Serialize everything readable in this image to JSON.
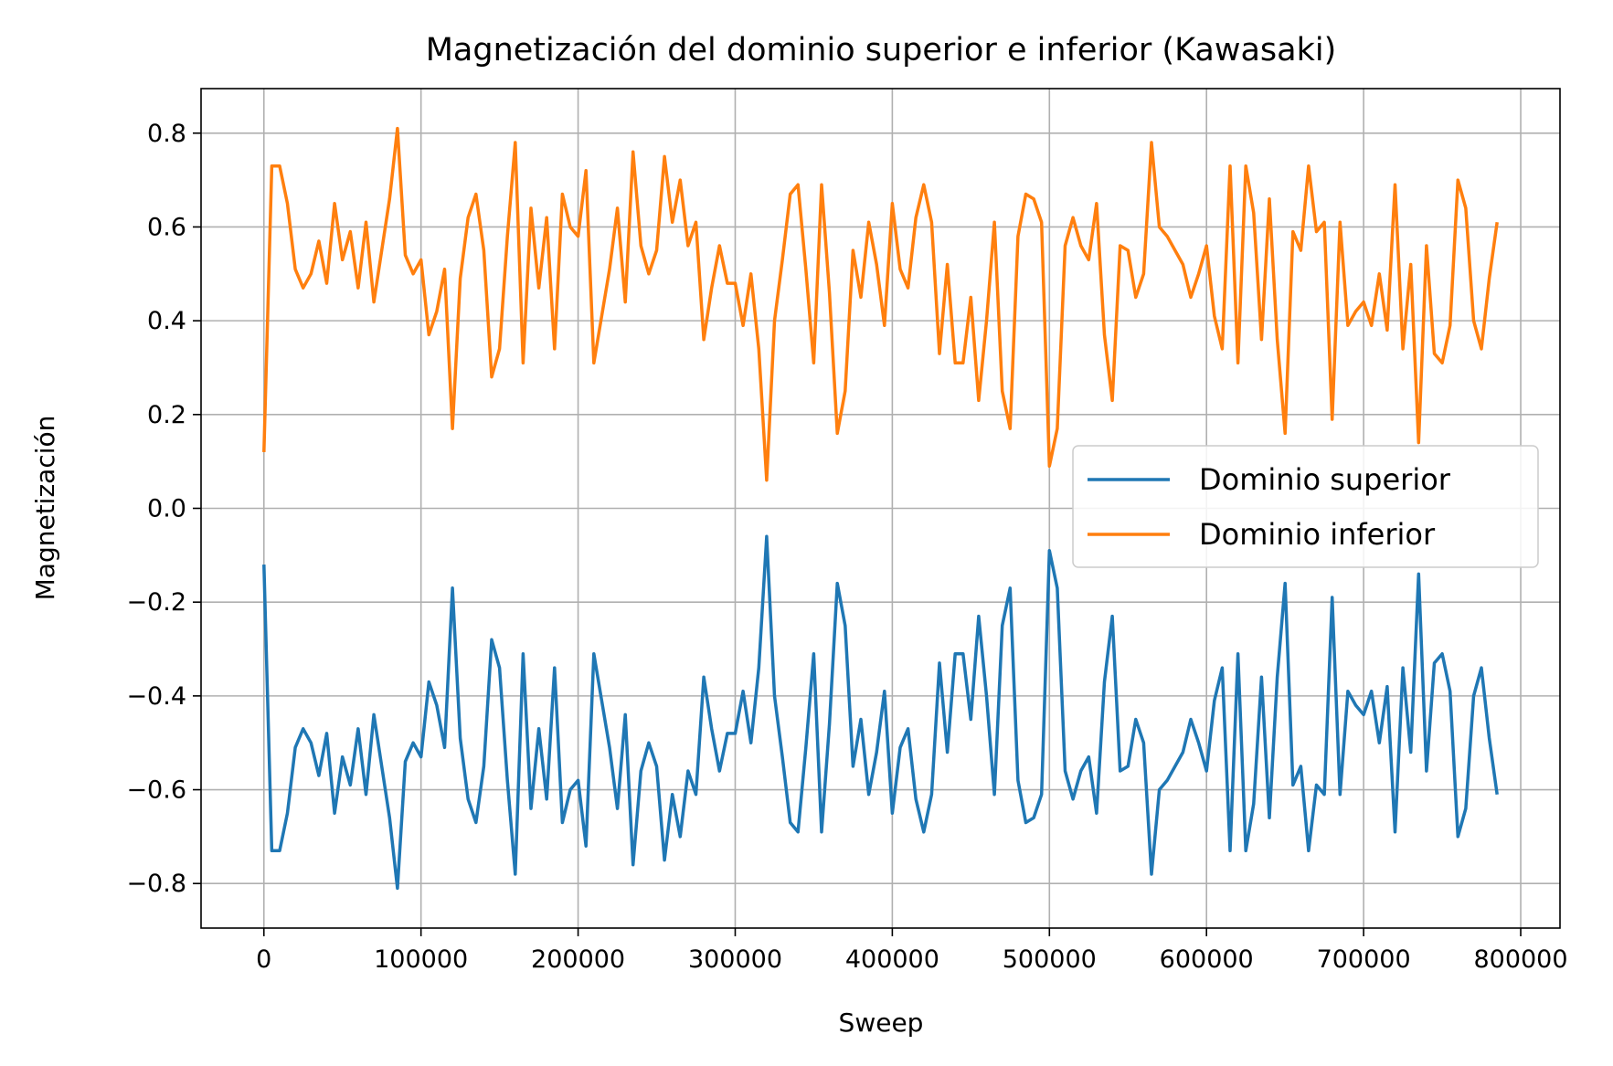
{
  "chart_data": {
    "type": "line",
    "title": "Magnetización del dominio superior e inferior (Kawasaki)",
    "xlabel": "Sweep",
    "ylabel": "Magnetización",
    "xlim": [
      -40000,
      825000
    ],
    "ylim": [
      -0.895,
      0.895
    ],
    "xticks": [
      0,
      100000,
      200000,
      300000,
      400000,
      500000,
      600000,
      700000,
      800000
    ],
    "xtick_labels": [
      "0",
      "100000",
      "200000",
      "300000",
      "400000",
      "500000",
      "600000",
      "700000",
      "800000"
    ],
    "yticks": [
      -0.8,
      -0.6,
      -0.4,
      -0.2,
      0.0,
      0.2,
      0.4,
      0.6,
      0.8
    ],
    "ytick_labels": [
      "−0.8",
      "−0.6",
      "−0.4",
      "−0.2",
      "0.0",
      "0.2",
      "0.4",
      "0.6",
      "0.8"
    ],
    "grid": true,
    "legend_position": "center-right",
    "x": [
      0,
      5000,
      10000,
      15000,
      20000,
      25000,
      30000,
      35000,
      40000,
      45000,
      50000,
      55000,
      60000,
      65000,
      70000,
      75000,
      80000,
      85000,
      90000,
      95000,
      100000,
      105000,
      110000,
      115000,
      120000,
      125000,
      130000,
      135000,
      140000,
      145000,
      150000,
      155000,
      160000,
      165000,
      170000,
      175000,
      180000,
      185000,
      190000,
      195000,
      200000,
      205000,
      210000,
      215000,
      220000,
      225000,
      230000,
      235000,
      240000,
      245000,
      250000,
      255000,
      260000,
      265000,
      270000,
      275000,
      280000,
      285000,
      290000,
      295000,
      300000,
      305000,
      310000,
      315000,
      320000,
      325000,
      330000,
      335000,
      340000,
      345000,
      350000,
      355000,
      360000,
      365000,
      370000,
      375000,
      380000,
      385000,
      390000,
      395000,
      400000,
      405000,
      410000,
      415000,
      420000,
      425000,
      430000,
      435000,
      440000,
      445000,
      450000,
      455000,
      460000,
      465000,
      470000,
      475000,
      480000,
      485000,
      490000,
      495000,
      500000,
      505000,
      510000,
      515000,
      520000,
      525000,
      530000,
      535000,
      540000,
      545000,
      550000,
      555000,
      560000,
      565000,
      570000,
      575000,
      580000,
      585000,
      590000,
      595000,
      600000,
      605000,
      610000,
      615000,
      620000,
      625000,
      630000,
      635000,
      640000,
      645000,
      650000,
      655000,
      660000,
      665000,
      670000,
      675000,
      680000,
      685000,
      690000,
      695000,
      700000,
      705000,
      710000,
      715000,
      720000,
      725000,
      730000,
      735000,
      740000,
      745000,
      750000,
      755000,
      760000,
      765000,
      770000,
      775000,
      780000,
      785000
    ],
    "series": [
      {
        "name": "Dominio superior",
        "color": "#1f77b4",
        "values": [
          -0.12,
          -0.73,
          -0.73,
          -0.65,
          -0.51,
          -0.47,
          -0.5,
          -0.57,
          -0.48,
          -0.65,
          -0.53,
          -0.59,
          -0.47,
          -0.61,
          -0.44,
          -0.55,
          -0.66,
          -0.81,
          -0.54,
          -0.5,
          -0.53,
          -0.37,
          -0.42,
          -0.51,
          -0.17,
          -0.49,
          -0.62,
          -0.67,
          -0.55,
          -0.28,
          -0.34,
          -0.58,
          -0.78,
          -0.31,
          -0.64,
          -0.47,
          -0.62,
          -0.34,
          -0.67,
          -0.6,
          -0.58,
          -0.72,
          -0.31,
          -0.41,
          -0.51,
          -0.64,
          -0.44,
          -0.76,
          -0.56,
          -0.5,
          -0.55,
          -0.75,
          -0.61,
          -0.7,
          -0.56,
          -0.61,
          -0.36,
          -0.47,
          -0.56,
          -0.48,
          -0.48,
          -0.39,
          -0.5,
          -0.34,
          -0.06,
          -0.4,
          -0.53,
          -0.67,
          -0.69,
          -0.51,
          -0.31,
          -0.69,
          -0.46,
          -0.16,
          -0.25,
          -0.55,
          -0.45,
          -0.61,
          -0.52,
          -0.39,
          -0.65,
          -0.51,
          -0.47,
          -0.62,
          -0.69,
          -0.61,
          -0.33,
          -0.52,
          -0.31,
          -0.31,
          -0.45,
          -0.23,
          -0.4,
          -0.61,
          -0.25,
          -0.17,
          -0.58,
          -0.67,
          -0.66,
          -0.61,
          -0.09,
          -0.17,
          -0.56,
          -0.62,
          -0.56,
          -0.53,
          -0.65,
          -0.37,
          -0.23,
          -0.56,
          -0.55,
          -0.45,
          -0.5,
          -0.78,
          -0.6,
          -0.58,
          -0.55,
          -0.52,
          -0.45,
          -0.5,
          -0.56,
          -0.41,
          -0.34,
          -0.73,
          -0.31,
          -0.73,
          -0.63,
          -0.36,
          -0.66,
          -0.36,
          -0.16,
          -0.59,
          -0.55,
          -0.73,
          -0.59,
          -0.61,
          -0.19,
          -0.61,
          -0.39,
          -0.42,
          -0.44,
          -0.39,
          -0.5,
          -0.38,
          -0.69,
          -0.34,
          -0.52,
          -0.14,
          -0.56,
          -0.33,
          -0.31,
          -0.39,
          -0.7,
          -0.64,
          -0.4,
          -0.34,
          -0.49,
          -0.61
        ]
      },
      {
        "name": "Dominio inferior",
        "color": "#ff7f0e",
        "values": [
          0.12,
          0.73,
          0.73,
          0.65,
          0.51,
          0.47,
          0.5,
          0.57,
          0.48,
          0.65,
          0.53,
          0.59,
          0.47,
          0.61,
          0.44,
          0.55,
          0.66,
          0.81,
          0.54,
          0.5,
          0.53,
          0.37,
          0.42,
          0.51,
          0.17,
          0.49,
          0.62,
          0.67,
          0.55,
          0.28,
          0.34,
          0.58,
          0.78,
          0.31,
          0.64,
          0.47,
          0.62,
          0.34,
          0.67,
          0.6,
          0.58,
          0.72,
          0.31,
          0.41,
          0.51,
          0.64,
          0.44,
          0.76,
          0.56,
          0.5,
          0.55,
          0.75,
          0.61,
          0.7,
          0.56,
          0.61,
          0.36,
          0.47,
          0.56,
          0.48,
          0.48,
          0.39,
          0.5,
          0.34,
          0.06,
          0.4,
          0.53,
          0.67,
          0.69,
          0.51,
          0.31,
          0.69,
          0.46,
          0.16,
          0.25,
          0.55,
          0.45,
          0.61,
          0.52,
          0.39,
          0.65,
          0.51,
          0.47,
          0.62,
          0.69,
          0.61,
          0.33,
          0.52,
          0.31,
          0.31,
          0.45,
          0.23,
          0.4,
          0.61,
          0.25,
          0.17,
          0.58,
          0.67,
          0.66,
          0.61,
          0.09,
          0.17,
          0.56,
          0.62,
          0.56,
          0.53,
          0.65,
          0.37,
          0.23,
          0.56,
          0.55,
          0.45,
          0.5,
          0.78,
          0.6,
          0.58,
          0.55,
          0.52,
          0.45,
          0.5,
          0.56,
          0.41,
          0.34,
          0.73,
          0.31,
          0.73,
          0.63,
          0.36,
          0.66,
          0.36,
          0.16,
          0.59,
          0.55,
          0.73,
          0.59,
          0.61,
          0.19,
          0.61,
          0.39,
          0.42,
          0.44,
          0.39,
          0.5,
          0.38,
          0.69,
          0.34,
          0.52,
          0.14,
          0.56,
          0.33,
          0.31,
          0.39,
          0.7,
          0.64,
          0.4,
          0.34,
          0.49,
          0.61
        ]
      }
    ]
  }
}
